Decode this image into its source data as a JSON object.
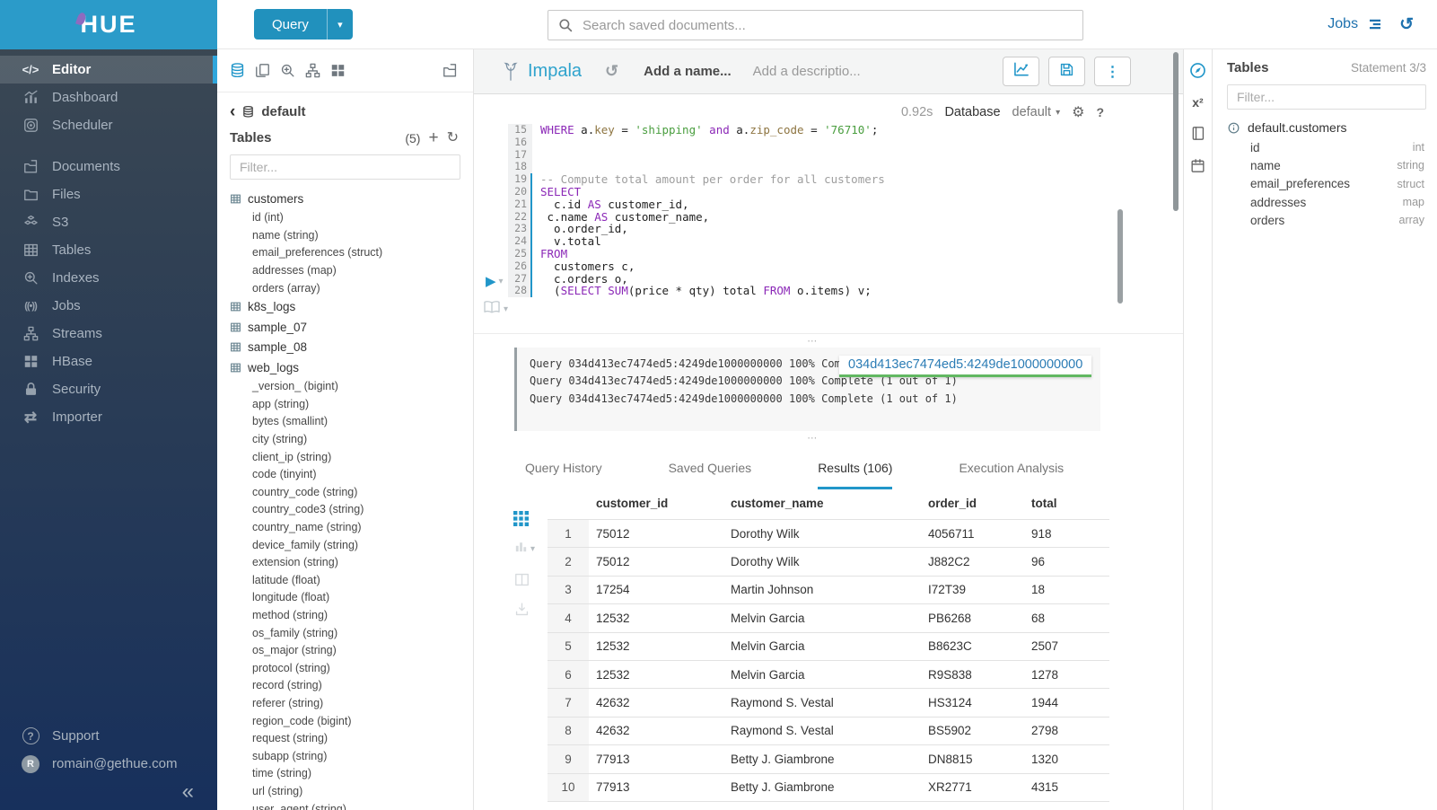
{
  "colors": {
    "accent": "#2196c9",
    "topbar_blue": "#2b9bc9",
    "tab_underline": "#2196c9",
    "tooltip_link": "#2b7cb5",
    "tooltip_underline": "#62b862",
    "syntax_keyword": "#8b28b7",
    "syntax_string": "#4a9e3f",
    "syntax_comment": "#9e9e9e",
    "syntax_column": "#8d7440"
  },
  "sidebar": {
    "logo_text": "HUE",
    "items": [
      {
        "label": "Editor",
        "icon": "code",
        "active": true
      },
      {
        "label": "Dashboard",
        "icon": "dashboard"
      },
      {
        "label": "Scheduler",
        "icon": "scheduler"
      },
      {
        "label": "Documents",
        "icon": "documents",
        "gap_before": true
      },
      {
        "label": "Files",
        "icon": "files"
      },
      {
        "label": "S3",
        "icon": "s3"
      },
      {
        "label": "Tables",
        "icon": "tables"
      },
      {
        "label": "Indexes",
        "icon": "indexes"
      },
      {
        "label": "Jobs",
        "icon": "jobs"
      },
      {
        "label": "Streams",
        "icon": "streams"
      },
      {
        "label": "HBase",
        "icon": "hbase"
      },
      {
        "label": "Security",
        "icon": "security"
      },
      {
        "label": "Importer",
        "icon": "importer"
      }
    ],
    "footer": {
      "support_label": "Support",
      "user_email": "romain@gethue.com",
      "avatar_letter": "R",
      "collapse_glyph": "«"
    }
  },
  "topbar": {
    "query_label": "Query",
    "search_placeholder": "Search saved documents...",
    "jobs_label": "Jobs"
  },
  "left_assist": {
    "breadcrumb": "default",
    "tables_label": "Tables",
    "count": "(5)",
    "filter_placeholder": "Filter...",
    "tables": [
      {
        "name": "customers",
        "columns": [
          "id (int)",
          "name (string)",
          "email_preferences (struct)",
          "addresses (map)",
          "orders (array)"
        ]
      },
      {
        "name": "k8s_logs",
        "columns": []
      },
      {
        "name": "sample_07",
        "columns": []
      },
      {
        "name": "sample_08",
        "columns": []
      },
      {
        "name": "web_logs",
        "columns": [
          "_version_ (bigint)",
          "app (string)",
          "bytes (smallint)",
          "city (string)",
          "client_ip (string)",
          "code (tinyint)",
          "country_code (string)",
          "country_code3 (string)",
          "country_name (string)",
          "device_family (string)",
          "extension (string)",
          "latitude (float)",
          "longitude (float)",
          "method (string)",
          "os_family (string)",
          "os_major (string)",
          "protocol (string)",
          "record (string)",
          "referer (string)",
          "region_code (bigint)",
          "request (string)",
          "subapp (string)",
          "time (string)",
          "url (string)",
          "user_agent (string)"
        ]
      }
    ]
  },
  "editor": {
    "engine": "Impala",
    "name_placeholder": "Add a name...",
    "description_placeholder": "Add a descriptio...",
    "exec_time": "0.92s",
    "database_label": "Database",
    "database_value": "default",
    "active_statement_from": 19,
    "code_lines": [
      {
        "n": 15,
        "tokens": [
          [
            "kw",
            "WHERE"
          ],
          [
            "t",
            " a."
          ],
          [
            "col",
            "key"
          ],
          [
            "t",
            " = "
          ],
          [
            "str",
            "'shipping'"
          ],
          [
            "t",
            " "
          ],
          [
            "kw",
            "and"
          ],
          [
            "t",
            " a."
          ],
          [
            "col",
            "zip_code"
          ],
          [
            "t",
            " = "
          ],
          [
            "str",
            "'76710'"
          ],
          [
            "t",
            ";"
          ]
        ]
      },
      {
        "n": 16,
        "tokens": []
      },
      {
        "n": 17,
        "tokens": []
      },
      {
        "n": 18,
        "tokens": []
      },
      {
        "n": 19,
        "tokens": [
          [
            "com",
            "-- Compute total amount per order for all customers"
          ]
        ]
      },
      {
        "n": 20,
        "tokens": [
          [
            "kw",
            "SELECT"
          ]
        ]
      },
      {
        "n": 21,
        "tokens": [
          [
            "t",
            "  c.id "
          ],
          [
            "kw",
            "AS"
          ],
          [
            "t",
            " customer_id,"
          ]
        ]
      },
      {
        "n": 22,
        "tokens": [
          [
            "t",
            " c.name "
          ],
          [
            "kw",
            "AS"
          ],
          [
            "t",
            " customer_name,"
          ]
        ]
      },
      {
        "n": 23,
        "tokens": [
          [
            "t",
            "  o.order_id,"
          ]
        ]
      },
      {
        "n": 24,
        "tokens": [
          [
            "t",
            "  v.total"
          ]
        ]
      },
      {
        "n": 25,
        "tokens": [
          [
            "kw",
            "FROM"
          ]
        ]
      },
      {
        "n": 26,
        "tokens": [
          [
            "t",
            "  customers c,"
          ]
        ]
      },
      {
        "n": 27,
        "tokens": [
          [
            "t",
            "  c.orders o,"
          ]
        ]
      },
      {
        "n": 28,
        "tokens": [
          [
            "t",
            "  ("
          ],
          [
            "kw",
            "SELECT"
          ],
          [
            "t",
            " "
          ],
          [
            "kw",
            "SUM"
          ],
          [
            "t",
            "(price * qty) total "
          ],
          [
            "kw",
            "FROM"
          ],
          [
            "t",
            " o.items) v;"
          ]
        ]
      }
    ]
  },
  "log": {
    "lines": [
      "Query 034d413ec7474ed5:4249de1000000000 100% Complete (1 out of 1)",
      "Query 034d413ec7474ed5:4249de1000000000 100% Complete (1 out of 1)",
      "Query 034d413ec7474ed5:4249de1000000000 100% Complete (1 out of 1)"
    ],
    "tooltip": "034d413ec7474ed5:4249de1000000000"
  },
  "tabs": [
    {
      "label": "Query History",
      "active": false
    },
    {
      "label": "Saved Queries",
      "active": false
    },
    {
      "label": "Results (106)",
      "active": true
    },
    {
      "label": "Execution Analysis",
      "active": false
    }
  ],
  "results": {
    "columns": [
      "customer_id",
      "customer_name",
      "order_id",
      "total"
    ],
    "rows": [
      [
        "1",
        "75012",
        "Dorothy Wilk",
        "4056711",
        "918"
      ],
      [
        "2",
        "75012",
        "Dorothy Wilk",
        "J882C2",
        "96"
      ],
      [
        "3",
        "17254",
        "Martin Johnson",
        "I72T39",
        "18"
      ],
      [
        "4",
        "12532",
        "Melvin Garcia",
        "PB6268",
        "68"
      ],
      [
        "5",
        "12532",
        "Melvin Garcia",
        "B8623C",
        "2507"
      ],
      [
        "6",
        "12532",
        "Melvin Garcia",
        "R9S838",
        "1278"
      ],
      [
        "7",
        "42632",
        "Raymond S. Vestal",
        "HS3124",
        "1944"
      ],
      [
        "8",
        "42632",
        "Raymond S. Vestal",
        "BS5902",
        "2798"
      ],
      [
        "9",
        "77913",
        "Betty J. Giambrone",
        "DN8815",
        "1320"
      ],
      [
        "10",
        "77913",
        "Betty J. Giambrone",
        "XR2771",
        "4315"
      ]
    ]
  },
  "right_assist": {
    "title": "Tables",
    "statement": "Statement 3/3",
    "filter_placeholder": "Filter...",
    "table_name": "default.customers",
    "columns": [
      {
        "name": "id",
        "type": "int"
      },
      {
        "name": "name",
        "type": "string"
      },
      {
        "name": "email_preferences",
        "type": "struct"
      },
      {
        "name": "addresses",
        "type": "map"
      },
      {
        "name": "orders",
        "type": "array"
      }
    ]
  }
}
